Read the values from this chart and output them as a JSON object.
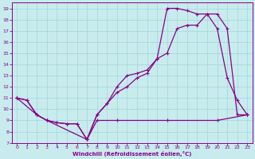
{
  "xlabel": "Windchill (Refroidissement éolien,°C)",
  "bg_color": "#c8ecee",
  "grid_color": "#a8d8da",
  "line_color": "#880088",
  "xlim": [
    -0.5,
    23.5
  ],
  "ylim": [
    7,
    19.5
  ],
  "xticks": [
    0,
    1,
    2,
    3,
    4,
    5,
    6,
    7,
    8,
    9,
    10,
    11,
    12,
    13,
    14,
    15,
    16,
    17,
    18,
    19,
    20,
    21,
    22,
    23
  ],
  "yticks": [
    7,
    8,
    9,
    10,
    11,
    12,
    13,
    14,
    15,
    16,
    17,
    18,
    19
  ],
  "line1_x": [
    0,
    1,
    2,
    3,
    4,
    5,
    6,
    7,
    8,
    10,
    15,
    20,
    23
  ],
  "line1_y": [
    11.0,
    10.8,
    9.5,
    9.0,
    8.8,
    8.7,
    8.7,
    7.3,
    9.0,
    9.0,
    9.0,
    9.0,
    9.5
  ],
  "line2_x": [
    0,
    1,
    2,
    3,
    4,
    5,
    6,
    7,
    8,
    9,
    10,
    11,
    12,
    13,
    14,
    15,
    16,
    17,
    18,
    19,
    20,
    21,
    22,
    23
  ],
  "line2_y": [
    11.0,
    10.8,
    9.5,
    9.0,
    8.8,
    8.7,
    8.7,
    7.3,
    9.5,
    10.5,
    11.5,
    12.0,
    12.8,
    13.2,
    14.5,
    15.0,
    17.2,
    17.5,
    17.5,
    18.5,
    17.2,
    12.8,
    10.8,
    9.5
  ],
  "line3_x": [
    0,
    2,
    3,
    7,
    8,
    9,
    10,
    11,
    12,
    13,
    14,
    15,
    16,
    17,
    18,
    19,
    20,
    21,
    22,
    23
  ],
  "line3_y": [
    11.0,
    9.5,
    9.0,
    7.3,
    9.5,
    10.5,
    12.0,
    13.0,
    13.2,
    13.5,
    14.5,
    19.0,
    19.0,
    18.8,
    18.5,
    18.5,
    18.5,
    17.2,
    9.5,
    9.5
  ]
}
